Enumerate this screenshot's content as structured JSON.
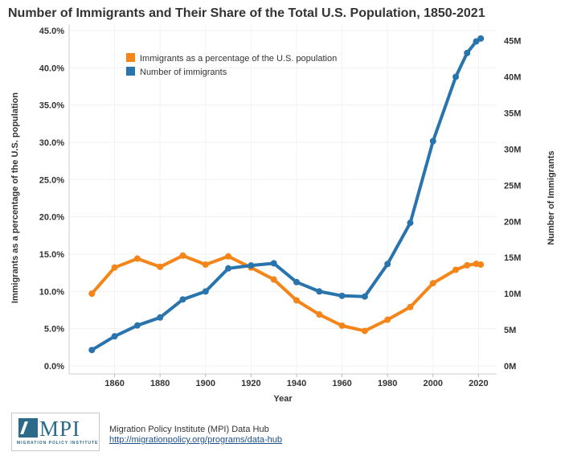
{
  "chart_data": {
    "type": "line",
    "title": "Number of Immigrants and Their Share of the Total U.S. Population, 1850-2021",
    "xlabel": "Year",
    "ylabel_left": "Immigrants as a percentage of the U.S. population",
    "ylabel_right": "Number of Immigrants",
    "x": [
      1850,
      1860,
      1870,
      1880,
      1890,
      1900,
      1910,
      1920,
      1930,
      1940,
      1950,
      1960,
      1970,
      1980,
      1990,
      2000,
      2010,
      2015,
      2019,
      2021
    ],
    "x_ticks": [
      "1860",
      "1880",
      "1900",
      "1920",
      "1940",
      "1960",
      "1980",
      "2000",
      "2020"
    ],
    "xlim": [
      1840,
      2028
    ],
    "y_left_ticks": [
      "0.0%",
      "5.0%",
      "10.0%",
      "15.0%",
      "20.0%",
      "25.0%",
      "30.0%",
      "35.0%",
      "40.0%",
      "45.0%"
    ],
    "y_left_lim": [
      0,
      45
    ],
    "y_right_ticks": [
      "0M",
      "5M",
      "10M",
      "15M",
      "20M",
      "25M",
      "30M",
      "35M",
      "40M",
      "45M"
    ],
    "y_right_lim": [
      0,
      46.4
    ],
    "grid": true,
    "legend_position": "top-left",
    "series": [
      {
        "name": "Immigrants as a percentage of the U.S. population",
        "axis": "left",
        "color": "#F58518",
        "values": [
          9.7,
          13.2,
          14.4,
          13.3,
          14.8,
          13.6,
          14.7,
          13.2,
          11.6,
          8.8,
          6.9,
          5.4,
          4.7,
          6.2,
          7.9,
          11.1,
          12.9,
          13.5,
          13.7,
          13.6
        ]
      },
      {
        "name": "Number of immigrants",
        "axis": "right",
        "color": "#2A74AE",
        "values": [
          2.2,
          4.1,
          5.6,
          6.7,
          9.2,
          10.3,
          13.5,
          13.9,
          14.2,
          11.6,
          10.3,
          9.7,
          9.6,
          14.1,
          19.8,
          31.1,
          40.0,
          43.3,
          44.9,
          45.3
        ]
      }
    ]
  },
  "footer": {
    "logo_text": "MPI",
    "logo_subtext": "MIGRATION POLICY INSTITUTE",
    "source_name": "Migration Policy Institute (MPI) Data Hub",
    "source_link": "http://migrationpolicy.org/programs/data-hub"
  }
}
